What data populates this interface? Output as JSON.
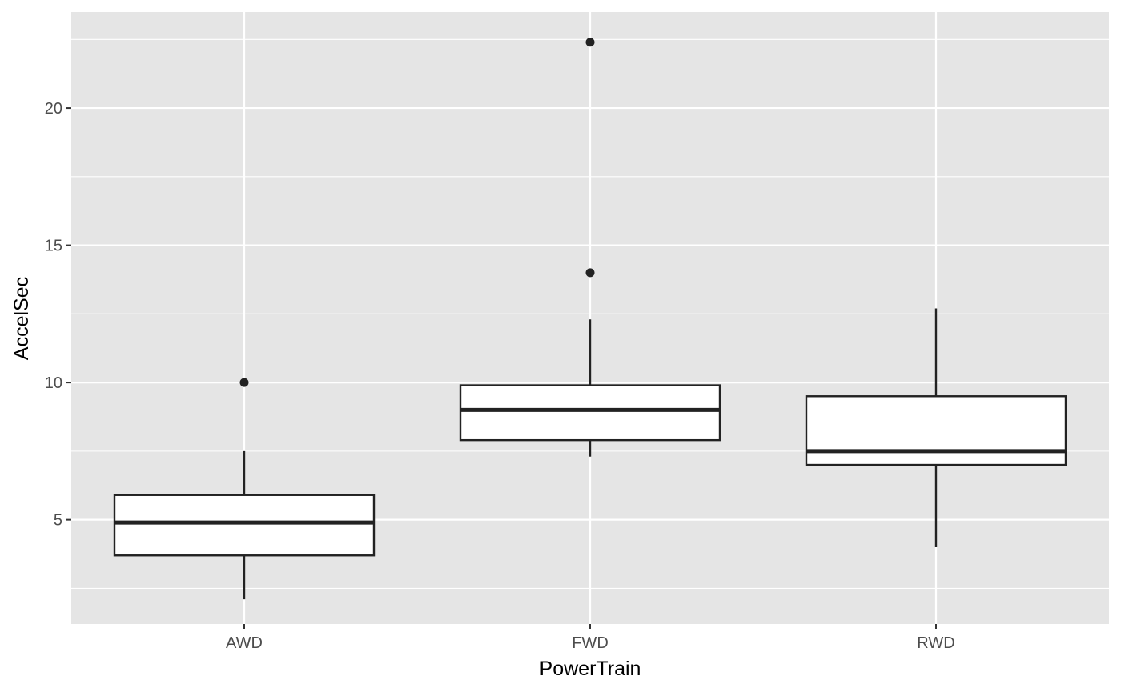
{
  "chart_data": {
    "type": "boxplot",
    "title": "",
    "xlabel": "PowerTrain",
    "ylabel": "AccelSec",
    "ylim": [
      1.2,
      23.5
    ],
    "yticks": [
      5,
      10,
      15,
      20
    ],
    "grid": true,
    "categories": [
      "AWD",
      "FWD",
      "RWD"
    ],
    "boxes": [
      {
        "category": "AWD",
        "whisker_low": 2.1,
        "q1": 3.7,
        "median": 4.9,
        "q3": 5.9,
        "whisker_high": 7.5,
        "outliers": [
          10.0
        ]
      },
      {
        "category": "FWD",
        "whisker_low": 7.3,
        "q1": 7.9,
        "median": 9.0,
        "q3": 9.9,
        "whisker_high": 12.3,
        "outliers": [
          14.0,
          22.4
        ]
      },
      {
        "category": "RWD",
        "whisker_low": 4.0,
        "q1": 7.0,
        "median": 7.5,
        "q3": 9.5,
        "whisker_high": 12.7,
        "outliers": []
      }
    ],
    "colors": {
      "panel": "#e5e5e5",
      "grid": "#ffffff",
      "box_fill": "#ffffff",
      "box_stroke": "#222222"
    }
  }
}
